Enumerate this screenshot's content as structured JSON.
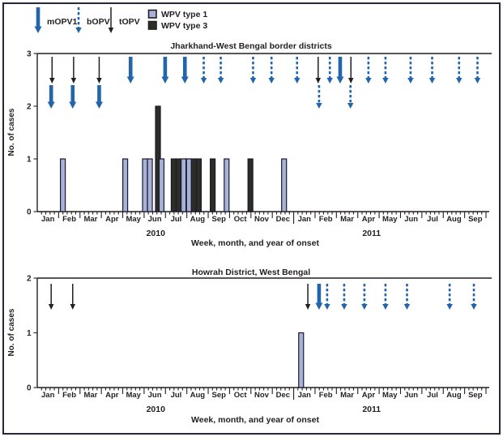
{
  "colors": {
    "blue_arrow": "#2365ab",
    "black_arrow": "#231f20",
    "wpv1_fill": "#a8b2d6",
    "wpv3_fill": "#2d2c25",
    "bar_stroke": "#1b1b30",
    "text": "#231f20"
  },
  "legend": {
    "items": [
      {
        "label": "mOPV1",
        "style": "solid-thick",
        "color": "#2365ab"
      },
      {
        "label": "bOPV",
        "style": "dashed",
        "color": "#2365ab"
      },
      {
        "label": "tOPV",
        "style": "solid-thin",
        "color": "#231f20"
      }
    ],
    "swatches": [
      {
        "label": "WPV type 1",
        "fill": "#a8b2d6"
      },
      {
        "label": "WPV type 3",
        "fill": "#2d2c25"
      }
    ]
  },
  "chart_data": [
    {
      "type": "bar",
      "title": "Jharkhand-West Bengal border districts",
      "ylabel": "No. of cases",
      "xlabel": "Week, month, and year of onset",
      "ylim": [
        0,
        3
      ],
      "yticks": [
        0,
        1,
        2,
        3
      ],
      "months": [
        "Jan",
        "Feb",
        "Mar",
        "Apr",
        "May",
        "Jun",
        "Jul",
        "Aug",
        "Sep",
        "Oct",
        "Nov",
        "Dec",
        "Jan",
        "Feb",
        "Mar",
        "Apr",
        "May",
        "Jun",
        "Jul",
        "Aug",
        "Sep"
      ],
      "year_divider_index": 12,
      "year_labels": [
        {
          "label": "2010",
          "pos": 0.264
        },
        {
          "label": "2011",
          "pos": 0.745
        }
      ],
      "bars": [
        {
          "pos": 0.057,
          "type": "WPV type 1",
          "cases": 1,
          "when": "late Jan 2010"
        },
        {
          "pos": 0.196,
          "type": "WPV type 1",
          "cases": 1,
          "when": "late Apr 2010"
        },
        {
          "pos": 0.24,
          "type": "WPV type 1",
          "cases": 1,
          "when": "late May 2010"
        },
        {
          "pos": 0.251,
          "type": "WPV type 1",
          "cases": 1,
          "when": "early Jun 2010"
        },
        {
          "pos": 0.269,
          "type": "WPV type 3",
          "cases": 2,
          "when": "mid Jun 2010"
        },
        {
          "pos": 0.277,
          "type": "WPV type 1",
          "cases": 1,
          "when": "late Jun 2010"
        },
        {
          "pos": 0.304,
          "type": "WPV type 3",
          "cases": 1,
          "when": "mid Jul 2010"
        },
        {
          "pos": 0.315,
          "type": "WPV type 3",
          "cases": 1,
          "when": "late Jul 2010"
        },
        {
          "pos": 0.332,
          "type": "WPV type 3",
          "cases": 1,
          "when": "early Aug 2010"
        },
        {
          "pos": 0.326,
          "type": "WPV type 1",
          "cases": 1,
          "when": "late Jul 2010"
        },
        {
          "pos": 0.338,
          "type": "WPV type 1",
          "cases": 1,
          "when": "early Aug 2010"
        },
        {
          "pos": 0.349,
          "type": "WPV type 3",
          "cases": 1,
          "when": "mid Aug 2010"
        },
        {
          "pos": 0.36,
          "type": "WPV type 3",
          "cases": 1,
          "when": "late Aug 2010"
        },
        {
          "pos": 0.391,
          "type": "WPV type 3",
          "cases": 1,
          "when": "mid Sep 2010"
        },
        {
          "pos": 0.422,
          "type": "WPV type 1",
          "cases": 1,
          "when": "early Oct 2010"
        },
        {
          "pos": 0.475,
          "type": "WPV type 3",
          "cases": 1,
          "when": "mid Nov 2010"
        },
        {
          "pos": 0.55,
          "type": "WPV type 1",
          "cases": 1,
          "when": "mid Dec 2010"
        }
      ],
      "arrows": [
        {
          "pos": 0.033,
          "vaccine": "tOPV",
          "row": "r1",
          "when": "mid Jan 2010"
        },
        {
          "pos": 0.031,
          "vaccine": "mOPV1",
          "row": "r2",
          "when": "mid Jan 2010"
        },
        {
          "pos": 0.081,
          "vaccine": "tOPV",
          "row": "r1",
          "when": "mid Feb 2010"
        },
        {
          "pos": 0.079,
          "vaccine": "mOPV1",
          "row": "r2",
          "when": "mid Feb 2010"
        },
        {
          "pos": 0.138,
          "vaccine": "tOPV",
          "row": "r1",
          "when": "mid Mar 2010"
        },
        {
          "pos": 0.138,
          "vaccine": "mOPV1",
          "row": "r2",
          "when": "mid Mar 2010"
        },
        {
          "pos": 0.208,
          "vaccine": "mOPV1",
          "row": "r1",
          "when": "late Apr 2010"
        },
        {
          "pos": 0.285,
          "vaccine": "mOPV1",
          "row": "r1",
          "when": "late Jun 2010"
        },
        {
          "pos": 0.329,
          "vaccine": "mOPV1",
          "row": "r1",
          "when": "late Jul 2010"
        },
        {
          "pos": 0.371,
          "vaccine": "bOPV",
          "row": "r1",
          "when": "late Aug 2010"
        },
        {
          "pos": 0.409,
          "vaccine": "bOPV",
          "row": "r1",
          "when": "late Sep 2010"
        },
        {
          "pos": 0.481,
          "vaccine": "bOPV",
          "row": "r1",
          "when": "mid Nov 2010"
        },
        {
          "pos": 0.522,
          "vaccine": "bOPV",
          "row": "r1",
          "when": "mid Dec 2010"
        },
        {
          "pos": 0.579,
          "vaccine": "bOPV",
          "row": "r1",
          "when": "mid Jan 2011"
        },
        {
          "pos": 0.626,
          "vaccine": "tOPV",
          "row": "r1",
          "when": "early Feb 2011"
        },
        {
          "pos": 0.628,
          "vaccine": "bOPV",
          "row": "r2",
          "when": "early Feb 2011"
        },
        {
          "pos": 0.652,
          "vaccine": "bOPV",
          "row": "r1",
          "when": "late Feb 2011"
        },
        {
          "pos": 0.675,
          "vaccine": "mOPV1",
          "row": "r1",
          "when": "mid Mar 2011"
        },
        {
          "pos": 0.699,
          "vaccine": "tOPV",
          "row": "r1",
          "when": "late Mar 2011"
        },
        {
          "pos": 0.698,
          "vaccine": "bOPV",
          "row": "r2",
          "when": "late Mar 2011"
        },
        {
          "pos": 0.738,
          "vaccine": "bOPV",
          "row": "r1",
          "when": "mid Apr 2011"
        },
        {
          "pos": 0.776,
          "vaccine": "bOPV",
          "row": "r1",
          "when": "mid May 2011"
        },
        {
          "pos": 0.832,
          "vaccine": "bOPV",
          "row": "r1",
          "when": "mid Jun 2011"
        },
        {
          "pos": 0.88,
          "vaccine": "bOPV",
          "row": "r1",
          "when": "late Jul 2011"
        },
        {
          "pos": 0.94,
          "vaccine": "bOPV",
          "row": "r1",
          "when": "early Sep 2011"
        },
        {
          "pos": 0.981,
          "vaccine": "bOPV",
          "row": "r1",
          "when": "late Sep 2011"
        }
      ]
    },
    {
      "type": "bar",
      "title": "Howrah District, West Bengal",
      "ylabel": "No. of cases",
      "xlabel": "Week, month, and year of onset",
      "ylim": [
        0,
        2
      ],
      "yticks": [
        0,
        1,
        2
      ],
      "months": [
        "Jan",
        "Feb",
        "Mar",
        "Apr",
        "May",
        "Jun",
        "Jul",
        "Aug",
        "Sep",
        "Oct",
        "Nov",
        "Dec",
        "Jan",
        "Feb",
        "Mar",
        "Apr",
        "May",
        "Jun",
        "Jul",
        "Aug",
        "Sep"
      ],
      "year_divider_index": 12,
      "year_labels": [
        {
          "label": "2010",
          "pos": 0.264
        },
        {
          "label": "2011",
          "pos": 0.745
        }
      ],
      "bars": [
        {
          "pos": 0.588,
          "type": "WPV type 1",
          "cases": 1,
          "when": "early Jan 2011"
        }
      ],
      "arrows": [
        {
          "pos": 0.031,
          "vaccine": "tOPV",
          "row": "r1",
          "when": "mid Jan 2010"
        },
        {
          "pos": 0.079,
          "vaccine": "tOPV",
          "row": "r1",
          "when": "mid Feb 2010"
        },
        {
          "pos": 0.603,
          "vaccine": "tOPV",
          "row": "r1",
          "when": "late Jan 2011"
        },
        {
          "pos": 0.628,
          "vaccine": "mOPV1",
          "row": "r1",
          "when": "early Feb 2011"
        },
        {
          "pos": 0.646,
          "vaccine": "bOPV",
          "row": "r1",
          "when": "mid Feb 2011"
        },
        {
          "pos": 0.684,
          "vaccine": "bOPV",
          "row": "r1",
          "when": "mid Mar 2011"
        },
        {
          "pos": 0.729,
          "vaccine": "bOPV",
          "row": "r1",
          "when": "mid Apr 2011"
        },
        {
          "pos": 0.776,
          "vaccine": "bOPV",
          "row": "r1",
          "when": "mid May 2011"
        },
        {
          "pos": 0.824,
          "vaccine": "bOPV",
          "row": "r1",
          "when": "mid Jun 2011"
        },
        {
          "pos": 0.919,
          "vaccine": "bOPV",
          "row": "r1",
          "when": "mid Aug 2011"
        },
        {
          "pos": 0.973,
          "vaccine": "bOPV",
          "row": "r1",
          "when": "mid Sep 2011"
        }
      ]
    }
  ]
}
